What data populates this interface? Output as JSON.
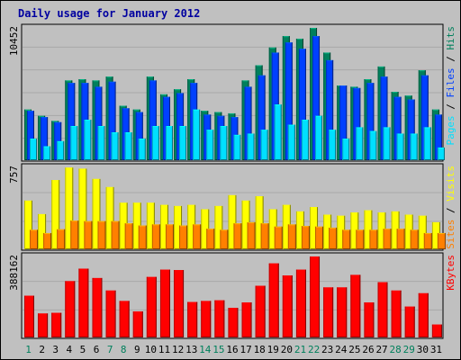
{
  "chart_data": {
    "type": "bar",
    "title": "Daily usage for January 2012",
    "categories": [
      "1",
      "2",
      "3",
      "4",
      "5",
      "6",
      "7",
      "8",
      "9",
      "10",
      "11",
      "12",
      "13",
      "14",
      "15",
      "16",
      "17",
      "18",
      "19",
      "20",
      "21",
      "22",
      "23",
      "24",
      "25",
      "26",
      "27",
      "28",
      "29",
      "30",
      "31"
    ],
    "weekend_days": [
      "1",
      "7",
      "8",
      "14",
      "15",
      "21",
      "22",
      "28",
      "29"
    ],
    "panels": [
      {
        "id": "hits-files-pages",
        "max_label": "10452",
        "ylim": [
          0,
          10452
        ],
        "series": [
          {
            "name": "Hits",
            "color": "#00805c",
            "values": [
              4000,
              3500,
              3100,
              6300,
              6400,
              6300,
              6600,
              4300,
              4000,
              6600,
              5200,
              5600,
              6400,
              3900,
              3800,
              3700,
              6300,
              7500,
              8900,
              9800,
              9600,
              10450,
              8500,
              5900,
              5800,
              6400,
              7400,
              5400,
              5100,
              7100,
              4000
            ]
          },
          {
            "name": "Files",
            "color": "#0040ff",
            "values": [
              3900,
              3400,
              3000,
              6100,
              6100,
              5800,
              6200,
              4100,
              3800,
              6300,
              5000,
              5300,
              6100,
              3600,
              3500,
              3400,
              5800,
              6700,
              8500,
              9300,
              8800,
              9800,
              7900,
              5900,
              5700,
              6100,
              6600,
              5000,
              4800,
              6700,
              3600
            ]
          },
          {
            "name": "Pages",
            "color": "#00e0ff",
            "values": [
              1700,
              1100,
              1500,
              2700,
              3200,
              2700,
              2200,
              2200,
              1700,
              2700,
              2700,
              2700,
              4000,
              2400,
              2700,
              2000,
              2100,
              2400,
              4400,
              2800,
              3200,
              3500,
              2400,
              1700,
              2600,
              2300,
              2600,
              2100,
              2100,
              2600,
              1000
            ]
          }
        ]
      },
      {
        "id": "visits-sites",
        "max_label": "757",
        "ylim": [
          0,
          757
        ],
        "series": [
          {
            "name": "Visits",
            "color": "#ffff00",
            "values": [
              450,
              325,
              640,
              755,
              745,
              650,
              575,
              430,
              430,
              430,
              410,
              400,
              410,
              370,
              400,
              500,
              450,
              490,
              370,
              410,
              350,
              390,
              320,
              310,
              340,
              360,
              340,
              350,
              320,
              310,
              250
            ]
          },
          {
            "name": "Sites",
            "color": "#ff8000",
            "values": [
              180,
              150,
              185,
              265,
              260,
              260,
              260,
              240,
              220,
              230,
              230,
              220,
              230,
              190,
              180,
              240,
              250,
              240,
              210,
              230,
              215,
              210,
              200,
              180,
              180,
              180,
              190,
              190,
              180,
              150,
              150
            ]
          }
        ]
      },
      {
        "id": "kbytes",
        "max_label": "388162",
        "ylim": [
          0,
          388162
        ],
        "series": [
          {
            "name": "KBytes",
            "color": "#ff0000",
            "values": [
              200000,
              115000,
              118000,
              270000,
              330000,
              285000,
              225000,
              175000,
              125000,
              290000,
              325000,
              323000,
              170000,
              175000,
              178000,
              142000,
              168000,
              248000,
              355000,
              297000,
              325000,
              388000,
              240000,
              240000,
              300000,
              168000,
              265000,
              225000,
              148000,
              212000,
              62000
            ]
          }
        ]
      }
    ],
    "grid": true,
    "legend_placement": "right"
  }
}
